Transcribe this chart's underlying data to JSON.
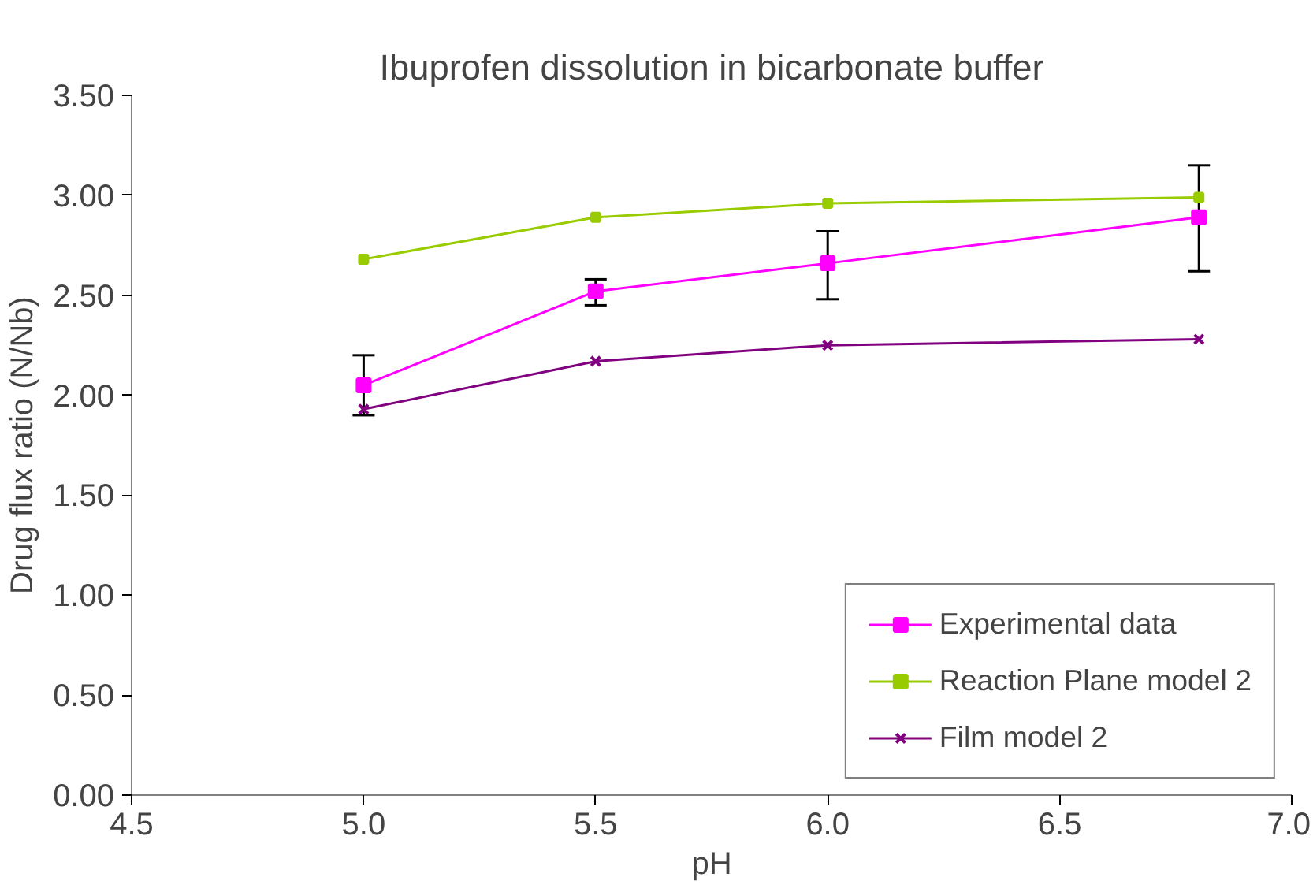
{
  "chart_data": {
    "type": "line",
    "title": "Ibuprofen dissolution in bicarbonate buffer",
    "xlabel": "pH",
    "ylabel": "Drug flux ratio (N/Nb)",
    "x": [
      5.0,
      5.5,
      6.0,
      6.8
    ],
    "series": [
      {
        "name": "Experimental data",
        "color": "#ff00ff",
        "marker": "square",
        "values": [
          2.05,
          2.52,
          2.66,
          2.89
        ],
        "errors": [
          [
            1.9,
            2.2
          ],
          [
            2.45,
            2.58
          ],
          [
            2.48,
            2.82
          ],
          [
            2.62,
            3.15
          ]
        ]
      },
      {
        "name": "Reaction Plane model 2",
        "color": "#99cc00",
        "marker": "square",
        "values": [
          2.68,
          2.89,
          2.96,
          2.99
        ]
      },
      {
        "name": "Film model 2",
        "color": "#800080",
        "marker": "cross",
        "values": [
          1.93,
          2.17,
          2.25,
          2.28
        ]
      }
    ],
    "xlim": [
      4.5,
      7.0
    ],
    "xticks": [
      {
        "value": 4.5,
        "label": "4.5"
      },
      {
        "value": 5.0,
        "label": "5.0"
      },
      {
        "value": 5.5,
        "label": "5.5"
      },
      {
        "value": 6.0,
        "label": "6.0"
      },
      {
        "value": 6.5,
        "label": "6.5"
      },
      {
        "value": 7.0,
        "label": "7.0"
      }
    ],
    "ylim": [
      0,
      3.5
    ],
    "yticks": [
      {
        "value": 0,
        "label": "0.00"
      },
      {
        "value": 0.5,
        "label": "0.50"
      },
      {
        "value": 1.0,
        "label": "1.00"
      },
      {
        "value": 1.5,
        "label": "1.50"
      },
      {
        "value": 2.0,
        "label": "2.00"
      },
      {
        "value": 2.5,
        "label": "2.50"
      },
      {
        "value": 3.0,
        "label": "3.00"
      },
      {
        "value": 3.5,
        "label": "3.50"
      }
    ],
    "grid": false,
    "legend": "bottom right"
  }
}
